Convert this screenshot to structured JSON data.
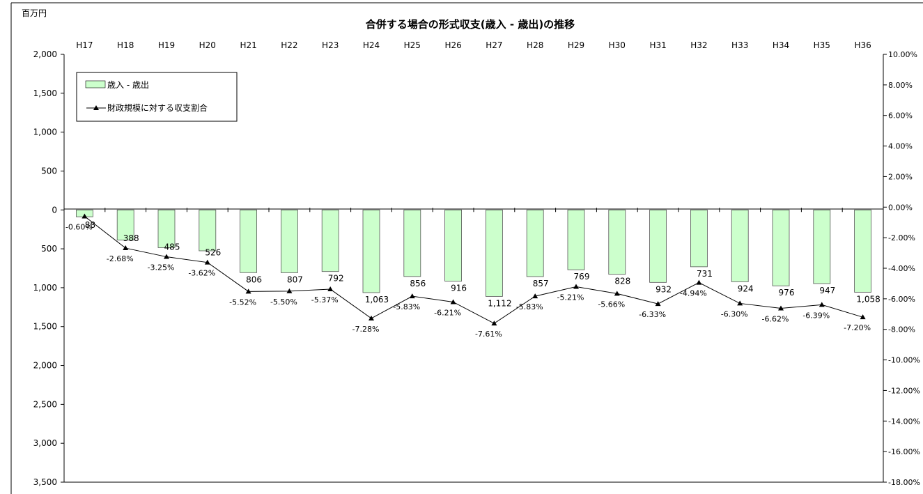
{
  "chart_data": {
    "type": "bar",
    "title": "合併する場合の形式収支(歳入 - 歳出)の推移",
    "unit_label": "百万円",
    "categories": [
      "H17",
      "H18",
      "H19",
      "H20",
      "H21",
      "H22",
      "H23",
      "H24",
      "H25",
      "H26",
      "H27",
      "H28",
      "H29",
      "H30",
      "H31",
      "H32",
      "H33",
      "H34",
      "H35",
      "H36"
    ],
    "left_axis": {
      "range": [
        2000,
        -3500
      ],
      "ticks": [
        2000,
        1500,
        1000,
        500,
        0,
        -500,
        -1000,
        -1500,
        -2000,
        -2500,
        -3000,
        -3500
      ],
      "tick_labels": [
        "2,000",
        "1,500",
        "1,000",
        "500",
        "0",
        "500",
        "1,000",
        "1,500",
        "2,000",
        "2,500",
        "3,000",
        "3,500"
      ]
    },
    "right_axis": {
      "range": [
        10,
        -18
      ],
      "ticks": [
        10,
        8,
        6,
        4,
        2,
        0,
        -2,
        -4,
        -6,
        -8,
        -10,
        -12,
        -14,
        -16,
        -18
      ],
      "tick_labels": [
        "10.00%",
        "8.00%",
        "6.00%",
        "4.00%",
        "2.00%",
        "0.00%",
        "-2.00%",
        "-4.00%",
        "-6.00%",
        "-8.00%",
        "-10.00%",
        "-12.00%",
        "-14.00%",
        "-16.00%",
        "-18.00%"
      ]
    },
    "grid": false,
    "legend_position": "top-left",
    "series": [
      {
        "name": "歳入 - 歳出",
        "type": "bar",
        "axis": "left",
        "color": "#ccffcc",
        "values": [
          -88,
          -388,
          -485,
          -526,
          -806,
          -807,
          -792,
          -1063,
          -856,
          -916,
          -1112,
          -857,
          -769,
          -828,
          -932,
          -731,
          -924,
          -976,
          -947,
          -1058
        ],
        "value_labels": [
          "88",
          "388",
          "485",
          "526",
          "806",
          "807",
          "792",
          "1,063",
          "856",
          "916",
          "1,112",
          "857",
          "769",
          "828",
          "932",
          "731",
          "924",
          "976",
          "947",
          "1,058"
        ]
      },
      {
        "name": "財政規模に対する収支割合",
        "type": "line",
        "axis": "right",
        "color": "#000000",
        "values": [
          -0.6,
          -2.68,
          -3.25,
          -3.62,
          -5.52,
          -5.5,
          -5.37,
          -7.28,
          -5.83,
          -6.21,
          -7.61,
          -5.83,
          -5.21,
          -5.66,
          -6.33,
          -4.94,
          -6.3,
          -6.62,
          -6.39,
          -7.2
        ],
        "value_labels": [
          "-0.60%",
          "-2.68%",
          "-3.25%",
          "-3.62%",
          "-5.52%",
          "-5.50%",
          "-5.37%",
          "-7.28%",
          "-5.83%",
          "-6.21%",
          "-7.61%",
          "-5.83%",
          "-5.21%",
          "-5.66%",
          "-6.33%",
          "-4.94%",
          "-6.30%",
          "-6.62%",
          "-6.39%",
          "-7.20%"
        ]
      }
    ]
  }
}
